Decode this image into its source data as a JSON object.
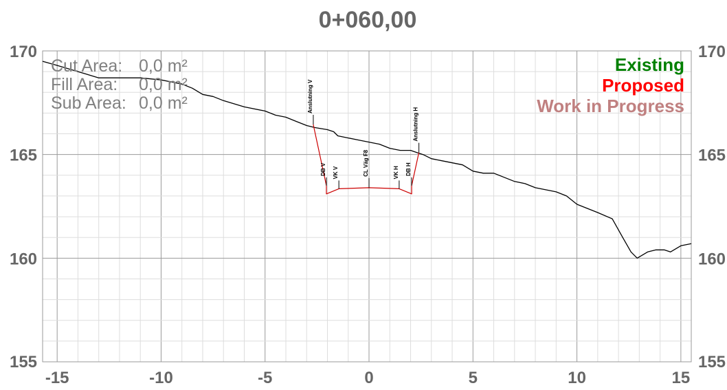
{
  "title": "0+060,00",
  "areas": [
    {
      "label": "Cut Area:",
      "value": "0,0 m²"
    },
    {
      "label": "Fill Area:",
      "value": "0,0 m²"
    },
    {
      "label": "Sub Area:",
      "value": "0,0 m²"
    }
  ],
  "legend": [
    {
      "label": "Existing",
      "color": "#008000"
    },
    {
      "label": "Proposed",
      "color": "#ff0000"
    },
    {
      "label": "Work in Progress",
      "color": "#c08080"
    }
  ],
  "chart_data": {
    "type": "line",
    "title": "0+060,00",
    "xlim": [
      -15.7,
      15.5
    ],
    "ylim": [
      155,
      170
    ],
    "x_ticks": [
      -15,
      -10,
      -5,
      0,
      5,
      10,
      15
    ],
    "x_tick_labels": [
      "-15",
      "-10",
      "-5",
      "0",
      "5",
      "10",
      "15"
    ],
    "y_ticks": [
      155,
      160,
      165,
      170
    ],
    "y_tick_labels": [
      "155",
      "160",
      "165",
      "170"
    ],
    "grid": true,
    "series": [
      {
        "name": "Existing",
        "color": "#000000",
        "x": [
          -15.7,
          -15.0,
          -14.0,
          -13.0,
          -12.0,
          -11.0,
          -10.0,
          -9.0,
          -8.5,
          -8.0,
          -7.5,
          -7.0,
          -6.0,
          -5.0,
          -4.5,
          -4.0,
          -3.5,
          -3.0,
          -2.6,
          -2.0,
          -1.7,
          -1.5,
          -1.0,
          -0.5,
          0,
          0.5,
          1.0,
          1.5,
          2.0,
          2.3,
          2.6,
          3.0,
          3.5,
          4.0,
          4.5,
          5.0,
          5.5,
          6.0,
          6.5,
          7.0,
          7.5,
          8.0,
          8.5,
          9.0,
          9.5,
          10.0,
          10.5,
          11.0,
          11.7,
          12.2,
          12.6,
          12.9,
          13.4,
          13.8,
          14.2,
          14.5,
          15.0,
          15.5
        ],
        "y": [
          169.5,
          169.3,
          169.0,
          168.7,
          168.7,
          168.7,
          168.6,
          168.4,
          168.2,
          167.9,
          167.8,
          167.6,
          167.3,
          167.1,
          166.9,
          166.8,
          166.6,
          166.4,
          166.3,
          166.2,
          166.1,
          165.9,
          165.8,
          165.7,
          165.6,
          165.5,
          165.3,
          165.2,
          165.2,
          165.1,
          165.0,
          164.8,
          164.7,
          164.6,
          164.5,
          164.2,
          164.1,
          164.1,
          163.9,
          163.7,
          163.6,
          163.4,
          163.3,
          163.2,
          163.0,
          162.6,
          162.4,
          162.2,
          161.9,
          161.0,
          160.3,
          160.0,
          160.3,
          160.4,
          160.4,
          160.3,
          160.6,
          160.7
        ]
      },
      {
        "name": "Proposed",
        "color": "#cc0000",
        "x": [
          -2.68,
          -2.05,
          -2.05,
          -1.45,
          0,
          1.45,
          2.05,
          2.05,
          2.4
        ],
        "y": [
          166.45,
          163.5,
          163.1,
          163.35,
          163.4,
          163.35,
          163.1,
          163.5,
          165.1
        ]
      }
    ],
    "point_labels": [
      {
        "text": "Anslutning V",
        "x": -2.68,
        "y": 166.45
      },
      {
        "text": "DB V",
        "x": -2.05,
        "y": 163.5
      },
      {
        "text": "VK V",
        "x": -1.45,
        "y": 163.35
      },
      {
        "text": "CL Väg F8",
        "x": 0,
        "y": 163.4
      },
      {
        "text": "VK H",
        "x": 1.45,
        "y": 163.35
      },
      {
        "text": "DB H",
        "x": 2.05,
        "y": 163.5
      },
      {
        "text": "Anslutning H",
        "x": 2.4,
        "y": 165.1
      }
    ]
  }
}
